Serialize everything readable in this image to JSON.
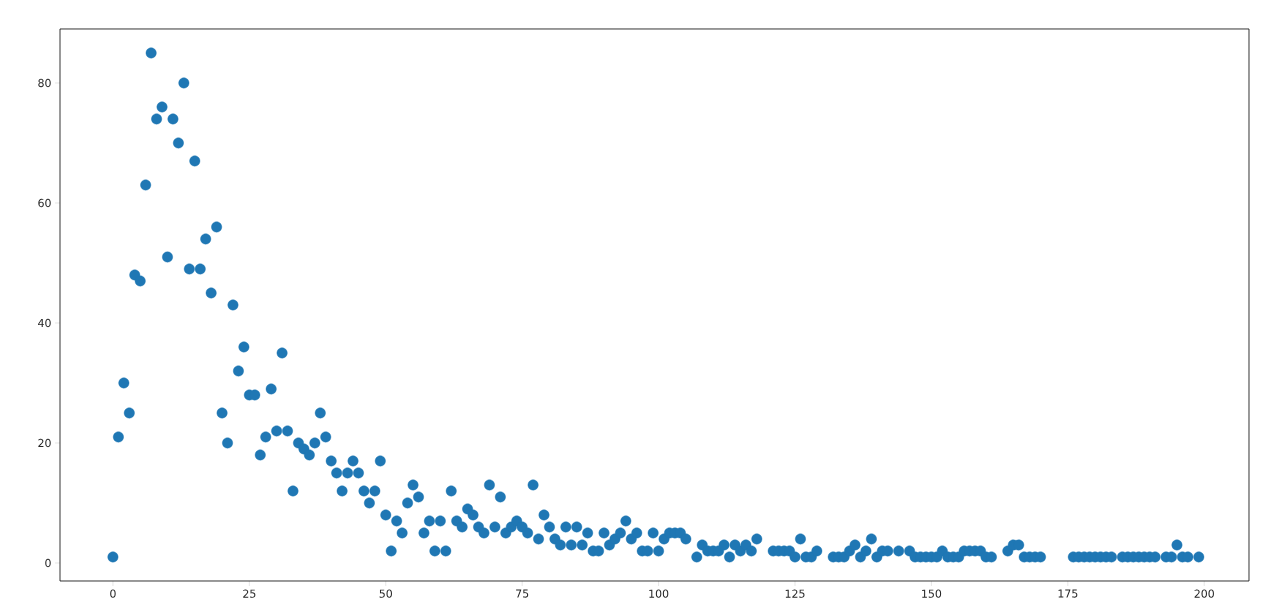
{
  "chart_data": {
    "type": "scatter",
    "color": "#1f77b4",
    "marker": "circle",
    "x": [
      0,
      1,
      2,
      3,
      4,
      5,
      6,
      7,
      8,
      9,
      10,
      11,
      12,
      13,
      14,
      15,
      16,
      17,
      18,
      19,
      20,
      21,
      22,
      23,
      24,
      25,
      26,
      27,
      28,
      29,
      30,
      31,
      32,
      33,
      34,
      35,
      36,
      37,
      38,
      39,
      40,
      41,
      42,
      43,
      44,
      45,
      46,
      47,
      48,
      49,
      50,
      51,
      52,
      53,
      54,
      55,
      56,
      57,
      58,
      59,
      60,
      61,
      62,
      63,
      64,
      65,
      66,
      67,
      68,
      69,
      70,
      71,
      72,
      73,
      74,
      75,
      76,
      77,
      78,
      79,
      80,
      81,
      82,
      83,
      84,
      85,
      86,
      87,
      88,
      89,
      90,
      91,
      92,
      93,
      94,
      95,
      96,
      97,
      98,
      99,
      100,
      101,
      102,
      103,
      104,
      105,
      107,
      108,
      109,
      110,
      111,
      112,
      113,
      114,
      115,
      116,
      117,
      118,
      121,
      122,
      123,
      124,
      125,
      126,
      127,
      128,
      129,
      132,
      133,
      134,
      135,
      136,
      137,
      138,
      139,
      140,
      141,
      142,
      144,
      146,
      147,
      148,
      149,
      150,
      151,
      152,
      153,
      154,
      155,
      156,
      157,
      158,
      159,
      160,
      161,
      164,
      165,
      166,
      167,
      168,
      169,
      170,
      176,
      177,
      178,
      179,
      180,
      181,
      182,
      183,
      185,
      186,
      187,
      188,
      189,
      190,
      191,
      193,
      194,
      195,
      196,
      197,
      199
    ],
    "values": [
      1,
      21,
      30,
      25,
      48,
      47,
      63,
      85,
      74,
      76,
      51,
      74,
      70,
      80,
      49,
      67,
      49,
      54,
      45,
      56,
      25,
      20,
      43,
      32,
      36,
      28,
      28,
      18,
      21,
      29,
      22,
      35,
      22,
      12,
      20,
      19,
      18,
      20,
      25,
      21,
      17,
      15,
      12,
      15,
      17,
      15,
      12,
      10,
      12,
      17,
      8,
      2,
      7,
      5,
      10,
      13,
      11,
      5,
      7,
      2,
      7,
      2,
      12,
      7,
      6,
      9,
      8,
      6,
      5,
      13,
      6,
      11,
      5,
      6,
      7,
      6,
      5,
      13,
      4,
      8,
      6,
      4,
      3,
      6,
      3,
      6,
      3,
      5,
      2,
      2,
      5,
      3,
      4,
      5,
      7,
      4,
      5,
      2,
      2,
      5,
      2,
      4,
      5,
      5,
      5,
      4,
      1,
      3,
      2,
      2,
      2,
      3,
      1,
      3,
      2,
      3,
      2,
      4,
      2,
      2,
      2,
      2,
      1,
      4,
      1,
      1,
      2,
      1,
      1,
      1,
      2,
      3,
      1,
      2,
      4,
      1,
      2,
      2,
      2,
      2,
      1,
      1,
      1,
      1,
      1,
      2,
      1,
      1,
      1,
      2,
      2,
      2,
      2,
      1,
      1,
      2,
      3,
      3,
      1,
      1,
      1,
      1,
      1,
      1,
      1,
      1,
      1,
      1,
      1,
      1,
      1,
      1,
      1,
      1,
      1,
      1,
      1,
      1,
      1,
      3,
      1,
      1,
      1
    ],
    "xlim": [
      -9.7,
      208.2
    ],
    "ylim": [
      -3,
      89
    ],
    "xticks": [
      0,
      25,
      50,
      75,
      100,
      125,
      150,
      175,
      200
    ],
    "yticks": [
      0,
      20,
      40,
      60,
      80
    ]
  }
}
